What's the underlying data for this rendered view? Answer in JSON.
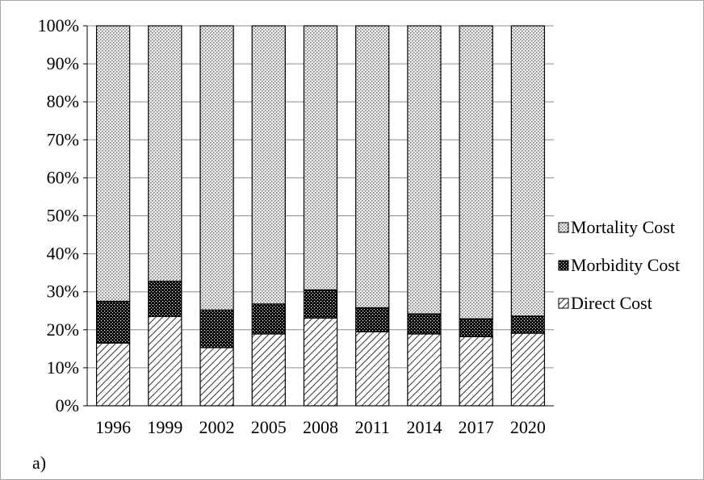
{
  "panel_label": "a)",
  "chart_data": {
    "type": "bar",
    "stacked": true,
    "categories": [
      "1996",
      "1999",
      "2002",
      "2005",
      "2008",
      "2011",
      "2014",
      "2017",
      "2020"
    ],
    "series": [
      {
        "name": "Direct Cost",
        "pattern": "diagonal-hatch",
        "values": [
          16.5,
          23.5,
          15.3,
          18.9,
          23.1,
          19.5,
          18.9,
          18.2,
          19.1
        ]
      },
      {
        "name": "Morbidity Cost",
        "pattern": "dense-black-dots",
        "values": [
          11.0,
          9.3,
          9.9,
          7.9,
          7.4,
          6.3,
          5.3,
          4.7,
          4.5
        ]
      },
      {
        "name": "Mortality Cost",
        "pattern": "gray-checker",
        "values": [
          72.5,
          67.2,
          74.8,
          73.2,
          69.5,
          74.2,
          75.8,
          77.1,
          76.4
        ]
      }
    ],
    "yticks": [
      "0%",
      "10%",
      "20%",
      "30%",
      "40%",
      "50%",
      "60%",
      "70%",
      "80%",
      "90%",
      "100%"
    ],
    "ylim": [
      0,
      100
    ],
    "grid": true,
    "legend_position": "right",
    "legend_order": [
      "Mortality Cost",
      "Morbidity Cost",
      "Direct Cost"
    ],
    "title": "",
    "xlabel": "",
    "ylabel": ""
  }
}
